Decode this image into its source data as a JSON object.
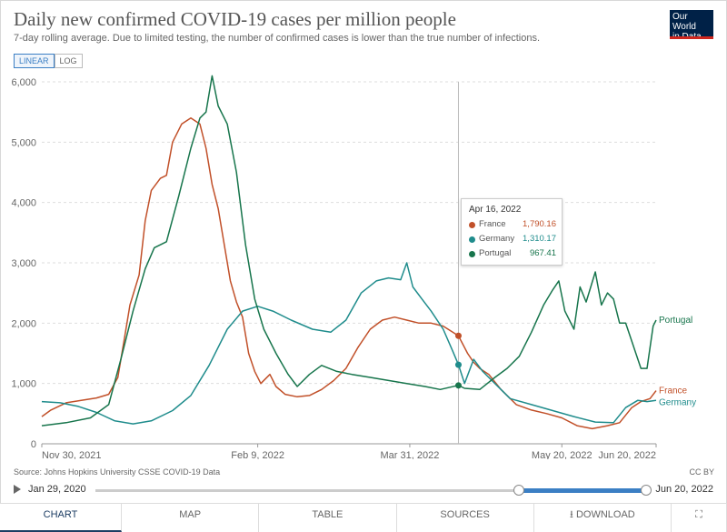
{
  "header": {
    "title": "Daily new confirmed COVID-19 cases per million people",
    "subtitle": "7-day rolling average. Due to limited testing, the number of confirmed cases is lower than the true number of infections.",
    "logo_line1": "Our World",
    "logo_line2": "in Data"
  },
  "scale_toggle": {
    "linear": "LINEAR",
    "log": "LOG",
    "selected": "LINEAR"
  },
  "footer": {
    "source": "Source: Johns Hopkins University CSSE COVID-19 Data",
    "license": "CC BY"
  },
  "timeline": {
    "start": "Jan 29, 2020",
    "end": "Jun 20, 2022"
  },
  "tabs": [
    "CHART",
    "MAP",
    "TABLE",
    "SOURCES",
    "DOWNLOAD"
  ],
  "tooltip": {
    "date": "Apr 16, 2022",
    "rows": [
      {
        "name": "France",
        "value": "1,790.16",
        "color": "#c15029"
      },
      {
        "name": "Germany",
        "value": "1,310.17",
        "color": "#1f8c8c"
      },
      {
        "name": "Portugal",
        "value": "967.41",
        "color": "#17754c"
      }
    ]
  },
  "chart_data": {
    "type": "line",
    "title": "Daily new confirmed COVID-19 cases per million people",
    "x_range": [
      "2021-11-30",
      "2022-06-20"
    ],
    "ylim": [
      0,
      6000
    ],
    "y_ticks": [
      0,
      1000,
      2000,
      3000,
      4000,
      5000,
      6000
    ],
    "y_tick_labels": [
      "0",
      "1,000",
      "2,000",
      "3,000",
      "4,000",
      "5,000",
      "6,000"
    ],
    "x_ticks": [
      "2021-11-30",
      "2022-02-09",
      "2022-03-31",
      "2022-05-20",
      "2022-06-20"
    ],
    "x_tick_labels": [
      "Nov 30, 2021",
      "Feb 9, 2022",
      "Mar 31, 2022",
      "May 20, 2022",
      "Jun 20, 2022"
    ],
    "grid": "horizontal",
    "hover_date": "2022-04-16",
    "series": [
      {
        "name": "France",
        "color": "#c15029",
        "points": [
          [
            "2021-11-30",
            450
          ],
          [
            "2021-12-03",
            560
          ],
          [
            "2021-12-08",
            680
          ],
          [
            "2021-12-13",
            720
          ],
          [
            "2021-12-18",
            760
          ],
          [
            "2021-12-22",
            820
          ],
          [
            "2021-12-25",
            1100
          ],
          [
            "2021-12-27",
            1700
          ],
          [
            "2021-12-29",
            2300
          ],
          [
            "2022-01-01",
            2800
          ],
          [
            "2022-01-03",
            3700
          ],
          [
            "2022-01-05",
            4200
          ],
          [
            "2022-01-08",
            4400
          ],
          [
            "2022-01-10",
            4450
          ],
          [
            "2022-01-12",
            5000
          ],
          [
            "2022-01-15",
            5300
          ],
          [
            "2022-01-18",
            5400
          ],
          [
            "2022-01-21",
            5300
          ],
          [
            "2022-01-23",
            4900
          ],
          [
            "2022-01-25",
            4300
          ],
          [
            "2022-01-27",
            3900
          ],
          [
            "2022-01-29",
            3300
          ],
          [
            "2022-01-31",
            2700
          ],
          [
            "2022-02-02",
            2350
          ],
          [
            "2022-02-04",
            2100
          ],
          [
            "2022-02-06",
            1500
          ],
          [
            "2022-02-08",
            1200
          ],
          [
            "2022-02-10",
            1000
          ],
          [
            "2022-02-13",
            1150
          ],
          [
            "2022-02-15",
            950
          ],
          [
            "2022-02-18",
            820
          ],
          [
            "2022-02-22",
            780
          ],
          [
            "2022-02-26",
            800
          ],
          [
            "2022-03-02",
            900
          ],
          [
            "2022-03-06",
            1050
          ],
          [
            "2022-03-10",
            1250
          ],
          [
            "2022-03-14",
            1600
          ],
          [
            "2022-03-18",
            1900
          ],
          [
            "2022-03-22",
            2050
          ],
          [
            "2022-03-26",
            2100
          ],
          [
            "2022-03-30",
            2050
          ],
          [
            "2022-04-03",
            2000
          ],
          [
            "2022-04-07",
            2000
          ],
          [
            "2022-04-11",
            1950
          ],
          [
            "2022-04-16",
            1790
          ],
          [
            "2022-04-19",
            1500
          ],
          [
            "2022-04-21",
            1350
          ],
          [
            "2022-04-23",
            1250
          ],
          [
            "2022-04-26",
            1150
          ],
          [
            "2022-04-30",
            900
          ],
          [
            "2022-05-05",
            650
          ],
          [
            "2022-05-10",
            560
          ],
          [
            "2022-05-15",
            500
          ],
          [
            "2022-05-20",
            430
          ],
          [
            "2022-05-25",
            300
          ],
          [
            "2022-05-30",
            250
          ],
          [
            "2022-06-04",
            300
          ],
          [
            "2022-06-08",
            350
          ],
          [
            "2022-06-12",
            600
          ],
          [
            "2022-06-15",
            700
          ],
          [
            "2022-06-18",
            750
          ],
          [
            "2022-06-20",
            880
          ]
        ]
      },
      {
        "name": "Germany",
        "color": "#1f8c8c",
        "points": [
          [
            "2021-11-30",
            700
          ],
          [
            "2021-12-06",
            680
          ],
          [
            "2021-12-12",
            620
          ],
          [
            "2021-12-18",
            520
          ],
          [
            "2021-12-24",
            380
          ],
          [
            "2021-12-30",
            330
          ],
          [
            "2022-01-05",
            380
          ],
          [
            "2022-01-12",
            550
          ],
          [
            "2022-01-18",
            800
          ],
          [
            "2022-01-24",
            1300
          ],
          [
            "2022-01-30",
            1900
          ],
          [
            "2022-02-04",
            2200
          ],
          [
            "2022-02-09",
            2280
          ],
          [
            "2022-02-14",
            2200
          ],
          [
            "2022-02-20",
            2050
          ],
          [
            "2022-02-27",
            1900
          ],
          [
            "2022-03-05",
            1850
          ],
          [
            "2022-03-10",
            2050
          ],
          [
            "2022-03-15",
            2500
          ],
          [
            "2022-03-20",
            2700
          ],
          [
            "2022-03-24",
            2750
          ],
          [
            "2022-03-28",
            2720
          ],
          [
            "2022-03-30",
            3000
          ],
          [
            "2022-04-01",
            2600
          ],
          [
            "2022-04-04",
            2400
          ],
          [
            "2022-04-07",
            2200
          ],
          [
            "2022-04-11",
            1900
          ],
          [
            "2022-04-14",
            1550
          ],
          [
            "2022-04-16",
            1310
          ],
          [
            "2022-04-18",
            1000
          ],
          [
            "2022-04-21",
            1400
          ],
          [
            "2022-04-24",
            1200
          ],
          [
            "2022-04-28",
            1000
          ],
          [
            "2022-05-03",
            750
          ],
          [
            "2022-05-10",
            650
          ],
          [
            "2022-05-17",
            550
          ],
          [
            "2022-05-24",
            450
          ],
          [
            "2022-05-31",
            360
          ],
          [
            "2022-06-06",
            350
          ],
          [
            "2022-06-10",
            600
          ],
          [
            "2022-06-14",
            720
          ],
          [
            "2022-06-17",
            700
          ],
          [
            "2022-06-20",
            720
          ]
        ]
      },
      {
        "name": "Portugal",
        "color": "#17754c",
        "points": [
          [
            "2021-11-30",
            300
          ],
          [
            "2021-12-08",
            350
          ],
          [
            "2021-12-16",
            430
          ],
          [
            "2021-12-22",
            650
          ],
          [
            "2021-12-26",
            1400
          ],
          [
            "2021-12-30",
            2200
          ],
          [
            "2022-01-03",
            2900
          ],
          [
            "2022-01-06",
            3250
          ],
          [
            "2022-01-10",
            3350
          ],
          [
            "2022-01-14",
            4100
          ],
          [
            "2022-01-18",
            4900
          ],
          [
            "2022-01-21",
            5400
          ],
          [
            "2022-01-23",
            5500
          ],
          [
            "2022-01-25",
            6100
          ],
          [
            "2022-01-27",
            5600
          ],
          [
            "2022-01-30",
            5300
          ],
          [
            "2022-02-02",
            4500
          ],
          [
            "2022-02-05",
            3300
          ],
          [
            "2022-02-08",
            2400
          ],
          [
            "2022-02-11",
            1900
          ],
          [
            "2022-02-15",
            1500
          ],
          [
            "2022-02-19",
            1150
          ],
          [
            "2022-02-22",
            950
          ],
          [
            "2022-02-26",
            1150
          ],
          [
            "2022-03-02",
            1300
          ],
          [
            "2022-03-07",
            1200
          ],
          [
            "2022-03-12",
            1150
          ],
          [
            "2022-03-18",
            1100
          ],
          [
            "2022-03-24",
            1050
          ],
          [
            "2022-03-30",
            1000
          ],
          [
            "2022-04-05",
            950
          ],
          [
            "2022-04-10",
            900
          ],
          [
            "2022-04-16",
            970
          ],
          [
            "2022-04-18",
            920
          ],
          [
            "2022-04-23",
            900
          ],
          [
            "2022-04-28",
            1100
          ],
          [
            "2022-05-02",
            1250
          ],
          [
            "2022-05-06",
            1450
          ],
          [
            "2022-05-10",
            1850
          ],
          [
            "2022-05-14",
            2300
          ],
          [
            "2022-05-17",
            2550
          ],
          [
            "2022-05-19",
            2700
          ],
          [
            "2022-05-21",
            2200
          ],
          [
            "2022-05-24",
            1900
          ],
          [
            "2022-05-26",
            2600
          ],
          [
            "2022-05-28",
            2350
          ],
          [
            "2022-05-31",
            2850
          ],
          [
            "2022-06-02",
            2300
          ],
          [
            "2022-06-04",
            2500
          ],
          [
            "2022-06-06",
            2400
          ],
          [
            "2022-06-08",
            2000
          ],
          [
            "2022-06-10",
            2000
          ],
          [
            "2022-06-13",
            1550
          ],
          [
            "2022-06-15",
            1250
          ],
          [
            "2022-06-17",
            1250
          ],
          [
            "2022-06-19",
            1950
          ],
          [
            "2022-06-20",
            2050
          ]
        ]
      }
    ]
  }
}
